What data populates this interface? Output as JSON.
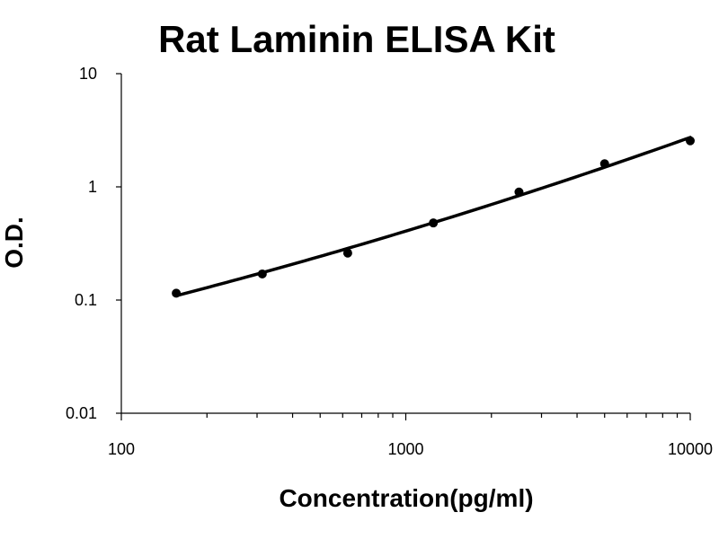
{
  "chart_data": {
    "type": "scatter",
    "title": "Rat Laminin ELISA Kit",
    "xlabel": "Concentration(pg/ml)",
    "ylabel": "O.D.",
    "x_scale": "log",
    "y_scale": "log",
    "xlim": [
      100,
      10000
    ],
    "ylim": [
      0.01,
      10
    ],
    "x_ticks": [
      "100",
      "1000",
      "10000"
    ],
    "y_ticks": [
      "10",
      "1",
      "0.1",
      "0.01"
    ],
    "grid": false,
    "legend": "none",
    "series": [
      {
        "x": [
          156,
          313,
          625,
          1250,
          2500,
          5000,
          10000
        ],
        "y": [
          0.115,
          0.17,
          0.26,
          0.48,
          0.9,
          1.6,
          2.55
        ],
        "fit": "smooth curve"
      }
    ],
    "colors": {
      "marker": "#000000",
      "line": "#000000"
    }
  }
}
